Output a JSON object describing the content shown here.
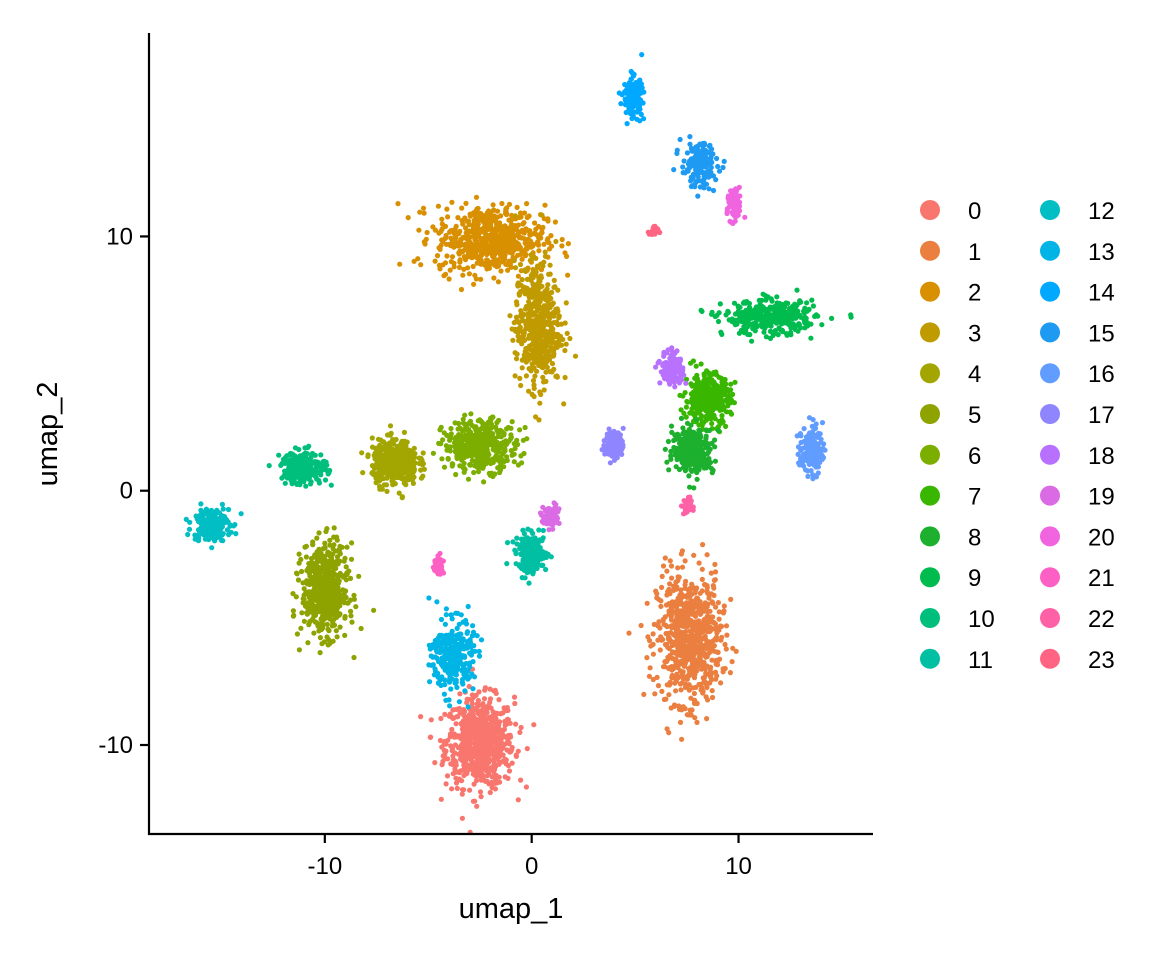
{
  "chart_data": {
    "type": "scatter",
    "title": "",
    "xlabel": "umap_1",
    "ylabel": "umap_2",
    "xlim": [
      -18.5,
      16.5
    ],
    "ylim": [
      -13.5,
      18
    ],
    "xticks": [
      -10,
      0,
      10
    ],
    "yticks": [
      -10,
      0,
      10
    ],
    "xtick_labels": [
      "-10",
      "0",
      "10"
    ],
    "ytick_labels": [
      "-10",
      "0",
      "10"
    ],
    "grid": false,
    "legend_position": "right",
    "legend_columns": 2,
    "series": [
      {
        "name": "0",
        "color": "#F8766D",
        "centroid": [
          -2.5,
          -9.9
        ],
        "spread": [
          1.5,
          1.6
        ],
        "count": 700
      },
      {
        "name": "1",
        "color": "#EA7F40",
        "centroid": [
          7.6,
          -5.8
        ],
        "spread": [
          1.4,
          2.3
        ],
        "count": 700
      },
      {
        "name": "2",
        "color": "#D89000",
        "centroid": [
          -2.0,
          9.9
        ],
        "spread": [
          2.4,
          1.2
        ],
        "count": 600
      },
      {
        "name": "3",
        "color": "#C09B00",
        "centroid": [
          0.3,
          6.5
        ],
        "spread": [
          1.0,
          2.2
        ],
        "count": 500
      },
      {
        "name": "4",
        "color": "#A3A500",
        "centroid": [
          -6.6,
          1.1
        ],
        "spread": [
          1.0,
          0.8
        ],
        "count": 450
      },
      {
        "name": "5",
        "color": "#8EA200",
        "centroid": [
          -10.0,
          -3.9
        ],
        "spread": [
          1.0,
          1.6
        ],
        "count": 550
      },
      {
        "name": "6",
        "color": "#7CAE00",
        "centroid": [
          -2.5,
          1.8
        ],
        "spread": [
          1.6,
          0.9
        ],
        "count": 400
      },
      {
        "name": "7",
        "color": "#39B600",
        "centroid": [
          8.5,
          3.6
        ],
        "spread": [
          1.0,
          0.9
        ],
        "count": 350
      },
      {
        "name": "8",
        "color": "#1CB02E",
        "centroid": [
          7.8,
          1.6
        ],
        "spread": [
          0.9,
          0.8
        ],
        "count": 300
      },
      {
        "name": "9",
        "color": "#00BB4E",
        "centroid": [
          11.5,
          6.8
        ],
        "spread": [
          2.0,
          0.6
        ],
        "count": 350
      },
      {
        "name": "10",
        "color": "#00BF7D",
        "centroid": [
          -11.0,
          0.9
        ],
        "spread": [
          1.0,
          0.6
        ],
        "count": 220
      },
      {
        "name": "11",
        "color": "#00BFA3",
        "centroid": [
          0.0,
          -2.5
        ],
        "spread": [
          0.7,
          0.7
        ],
        "count": 180
      },
      {
        "name": "12",
        "color": "#00BEC4",
        "centroid": [
          -15.5,
          -1.3
        ],
        "spread": [
          0.8,
          0.6
        ],
        "count": 200
      },
      {
        "name": "13",
        "color": "#00B4E5",
        "centroid": [
          -3.8,
          -6.5
        ],
        "spread": [
          0.9,
          1.3
        ],
        "count": 280
      },
      {
        "name": "14",
        "color": "#00A9FF",
        "centroid": [
          4.9,
          15.5
        ],
        "spread": [
          0.4,
          0.7
        ],
        "count": 180
      },
      {
        "name": "15",
        "color": "#1E9AF2",
        "centroid": [
          8.1,
          12.8
        ],
        "spread": [
          0.8,
          0.8
        ],
        "count": 160
      },
      {
        "name": "16",
        "color": "#619CFF",
        "centroid": [
          13.5,
          1.6
        ],
        "spread": [
          0.5,
          0.9
        ],
        "count": 140
      },
      {
        "name": "17",
        "color": "#8F86FF",
        "centroid": [
          4.0,
          1.8
        ],
        "spread": [
          0.4,
          0.5
        ],
        "count": 120
      },
      {
        "name": "18",
        "color": "#B871FF",
        "centroid": [
          6.8,
          4.8
        ],
        "spread": [
          0.5,
          0.6
        ],
        "count": 130
      },
      {
        "name": "19",
        "color": "#DB6AE5",
        "centroid": [
          0.9,
          -1.0
        ],
        "spread": [
          0.4,
          0.4
        ],
        "count": 80
      },
      {
        "name": "20",
        "color": "#F064E0",
        "centroid": [
          9.8,
          11.2
        ],
        "spread": [
          0.3,
          0.6
        ],
        "count": 90
      },
      {
        "name": "21",
        "color": "#FD60C5",
        "centroid": [
          -4.5,
          -3.0
        ],
        "spread": [
          0.2,
          0.4
        ],
        "count": 45
      },
      {
        "name": "22",
        "color": "#FF61A6",
        "centroid": [
          7.5,
          -0.6
        ],
        "spread": [
          0.2,
          0.3
        ],
        "count": 40
      },
      {
        "name": "23",
        "color": "#FF6583",
        "centroid": [
          5.9,
          10.2
        ],
        "spread": [
          0.2,
          0.2
        ],
        "count": 25
      }
    ]
  }
}
